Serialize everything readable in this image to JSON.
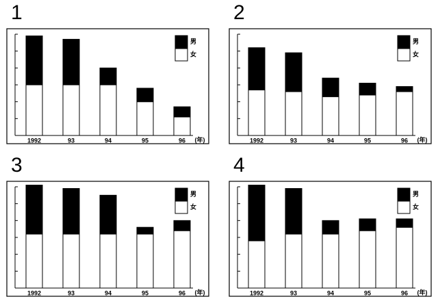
{
  "chart_data": [
    {
      "type": "bar",
      "stacked": true,
      "title": "1",
      "categories": [
        "1992",
        "93",
        "94",
        "95",
        "96"
      ],
      "xlabel": "(年)",
      "series": [
        {
          "name": "女",
          "color": "#ffffff",
          "values": [
            3.0,
            3.0,
            3.0,
            2.0,
            1.1
          ]
        },
        {
          "name": "男",
          "color": "#000000",
          "values": [
            2.9,
            2.7,
            1.0,
            0.8,
            0.6
          ]
        }
      ],
      "ylim": [
        0,
        6
      ],
      "yticks": [
        0,
        1,
        2,
        3,
        4,
        5,
        6
      ]
    },
    {
      "type": "bar",
      "stacked": true,
      "title": "2",
      "categories": [
        "1992",
        "93",
        "94",
        "95",
        "96"
      ],
      "xlabel": "(年)",
      "series": [
        {
          "name": "女",
          "color": "#ffffff",
          "values": [
            2.7,
            2.6,
            2.3,
            2.4,
            2.6
          ]
        },
        {
          "name": "男",
          "color": "#000000",
          "values": [
            2.5,
            2.3,
            1.1,
            0.7,
            0.3
          ]
        }
      ],
      "ylim": [
        0,
        6
      ],
      "yticks": [
        0,
        1,
        2,
        3,
        4,
        5,
        6
      ]
    },
    {
      "type": "bar",
      "stacked": true,
      "title": "3",
      "categories": [
        "1992",
        "93",
        "94",
        "95",
        "96"
      ],
      "xlabel": "(年)",
      "series": [
        {
          "name": "女",
          "color": "#ffffff",
          "values": [
            3.2,
            3.2,
            3.2,
            3.2,
            3.4
          ]
        },
        {
          "name": "男",
          "color": "#000000",
          "values": [
            2.9,
            2.7,
            2.3,
            0.4,
            0.6
          ]
        }
      ],
      "ylim": [
        0,
        6
      ],
      "yticks": [
        0,
        1,
        2,
        3,
        4,
        5,
        6
      ]
    },
    {
      "type": "bar",
      "stacked": true,
      "title": "4",
      "categories": [
        "1992",
        "93",
        "94",
        "95",
        "96"
      ],
      "xlabel": "(年)",
      "series": [
        {
          "name": "女",
          "color": "#ffffff",
          "values": [
            2.8,
            3.2,
            3.2,
            3.4,
            3.6
          ]
        },
        {
          "name": "男",
          "color": "#000000",
          "values": [
            3.3,
            2.7,
            0.8,
            0.7,
            0.5
          ]
        }
      ],
      "ylim": [
        0,
        6
      ],
      "yticks": [
        0,
        1,
        2,
        3,
        4,
        5,
        6
      ]
    }
  ]
}
